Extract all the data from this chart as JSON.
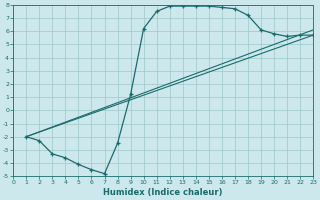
{
  "bg_color": "#cde8ec",
  "grid_color": "#9fc8cc",
  "line_color": "#1a6b6b",
  "xlabel": "Humidex (Indice chaleur)",
  "xlim": [
    0,
    23
  ],
  "ylim": [
    -5,
    8
  ],
  "xticks": [
    0,
    1,
    2,
    3,
    4,
    5,
    6,
    7,
    8,
    9,
    10,
    11,
    12,
    13,
    14,
    15,
    16,
    17,
    18,
    19,
    20,
    21,
    22,
    23
  ],
  "yticks": [
    -5,
    -4,
    -3,
    -2,
    -1,
    0,
    1,
    2,
    3,
    4,
    5,
    6,
    7,
    8
  ],
  "main_x": [
    1,
    2,
    3,
    4,
    5,
    6,
    7,
    8,
    9,
    10,
    11,
    12,
    13,
    14,
    15,
    16,
    17,
    18,
    19,
    20,
    21,
    22,
    23
  ],
  "main_y": [
    -2.0,
    -2.3,
    -3.3,
    -3.6,
    -4.1,
    -4.5,
    -4.8,
    -2.5,
    1.2,
    6.2,
    7.5,
    7.9,
    7.9,
    7.9,
    7.9,
    7.8,
    7.7,
    7.2,
    6.1,
    5.8,
    5.6,
    5.7,
    5.7
  ],
  "line2_x": [
    1,
    23
  ],
  "line2_y": [
    -2.0,
    5.7
  ],
  "line3_x": [
    1,
    23
  ],
  "line3_y": [
    -2.0,
    6.1
  ],
  "tick_fontsize": 4.5,
  "xlabel_fontsize": 6.0
}
